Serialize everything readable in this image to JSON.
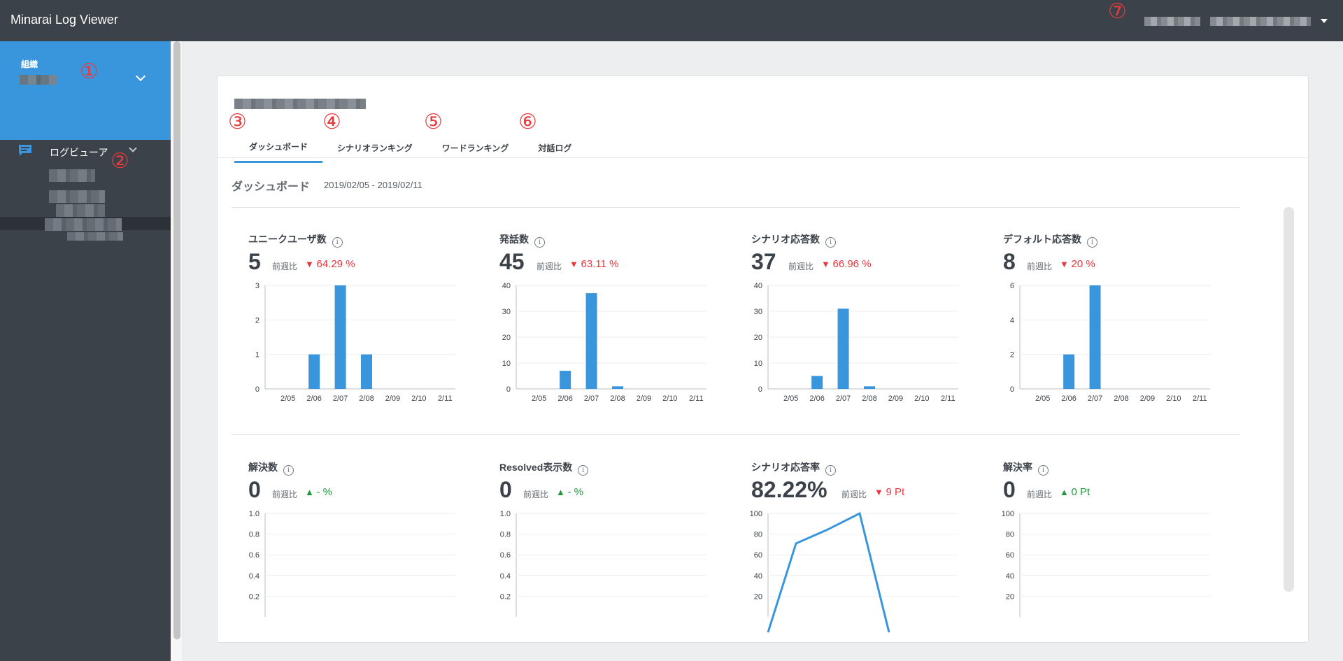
{
  "app": {
    "title": "Minarai Log Viewer"
  },
  "header": {
    "user_icon": "caret-down-icon"
  },
  "markers": [
    "①",
    "②",
    "③",
    "④",
    "⑤",
    "⑥",
    "⑦"
  ],
  "sidebar": {
    "org_label": "組織",
    "nav_label": "ログビューア",
    "nav_icon": "chat-icon"
  },
  "tabs": [
    {
      "label": "ダッシュボード",
      "active": true
    },
    {
      "label": "シナリオランキング",
      "active": false
    },
    {
      "label": "ワードランキング",
      "active": false
    },
    {
      "label": "対話ログ",
      "active": false
    }
  ],
  "dashboard": {
    "title": "ダッシュボード",
    "date_range": "2019/02/05 - 2019/02/11",
    "compare_label": "前週比",
    "info_glyph": "i",
    "metrics": [
      {
        "title": "ユニークユーザ数",
        "value": "5",
        "change": "64.29 %",
        "direction": "down"
      },
      {
        "title": "発話数",
        "value": "45",
        "change": "63.11 %",
        "direction": "down"
      },
      {
        "title": "シナリオ応答数",
        "value": "37",
        "change": "66.96 %",
        "direction": "down"
      },
      {
        "title": "デフォルト応答数",
        "value": "8",
        "change": "20 %",
        "direction": "down"
      },
      {
        "title": "解決数",
        "value": "0",
        "change": "- %",
        "direction": "up"
      },
      {
        "title": "Resolved表示数",
        "value": "0",
        "change": "- %",
        "direction": "up"
      },
      {
        "title": "シナリオ応答率",
        "value": "82.22%",
        "change": "9 Pt",
        "direction": "down"
      },
      {
        "title": "解決率",
        "value": "0",
        "change": "0 Pt",
        "direction": "up"
      }
    ]
  },
  "colors": {
    "accent": "#3996dc",
    "down": "#e8363d",
    "up": "#1e9a3c",
    "topbar": "#3b4249"
  },
  "chart_data": [
    {
      "type": "bar",
      "categories": [
        "2/05",
        "2/06",
        "2/07",
        "2/08",
        "2/09",
        "2/10",
        "2/11"
      ],
      "values": [
        0,
        1,
        3,
        1,
        0,
        0,
        0
      ],
      "yticks": [
        "0",
        "1",
        "2",
        "3"
      ],
      "ylim": [
        0,
        3
      ]
    },
    {
      "type": "bar",
      "categories": [
        "2/05",
        "2/06",
        "2/07",
        "2/08",
        "2/09",
        "2/10",
        "2/11"
      ],
      "values": [
        0,
        7,
        37,
        1,
        0,
        0,
        0
      ],
      "yticks": [
        "0",
        "10",
        "20",
        "30",
        "40"
      ],
      "ylim": [
        0,
        40
      ]
    },
    {
      "type": "bar",
      "categories": [
        "2/05",
        "2/06",
        "2/07",
        "2/08",
        "2/09",
        "2/10",
        "2/11"
      ],
      "values": [
        0,
        5,
        31,
        1,
        0,
        0,
        0
      ],
      "yticks": [
        "0",
        "10",
        "20",
        "30",
        "40"
      ],
      "ylim": [
        0,
        40
      ]
    },
    {
      "type": "bar",
      "categories": [
        "2/05",
        "2/06",
        "2/07",
        "2/08",
        "2/09",
        "2/10",
        "2/11"
      ],
      "values": [
        0,
        2,
        6,
        0,
        0,
        0,
        0
      ],
      "yticks": [
        "0",
        "2",
        "4",
        "6"
      ],
      "ylim": [
        0,
        6
      ]
    },
    {
      "type": "line",
      "values": [],
      "yticks": [
        "0.2",
        "0.4",
        "0.6",
        "0.8",
        "1.0"
      ],
      "ylim": [
        0,
        1.0
      ]
    },
    {
      "type": "line",
      "values": [],
      "yticks": [
        "0.2",
        "0.4",
        "0.6",
        "0.8",
        "1.0"
      ],
      "ylim": [
        0,
        1.0
      ]
    },
    {
      "type": "line",
      "values": [
        0,
        71,
        84,
        100,
        0
      ],
      "yticks": [
        "20",
        "40",
        "60",
        "80",
        "100"
      ],
      "ylim": [
        0,
        100
      ]
    },
    {
      "type": "line",
      "values": [],
      "yticks": [
        "20",
        "40",
        "60",
        "80",
        "100"
      ],
      "ylim": [
        0,
        100
      ]
    }
  ]
}
